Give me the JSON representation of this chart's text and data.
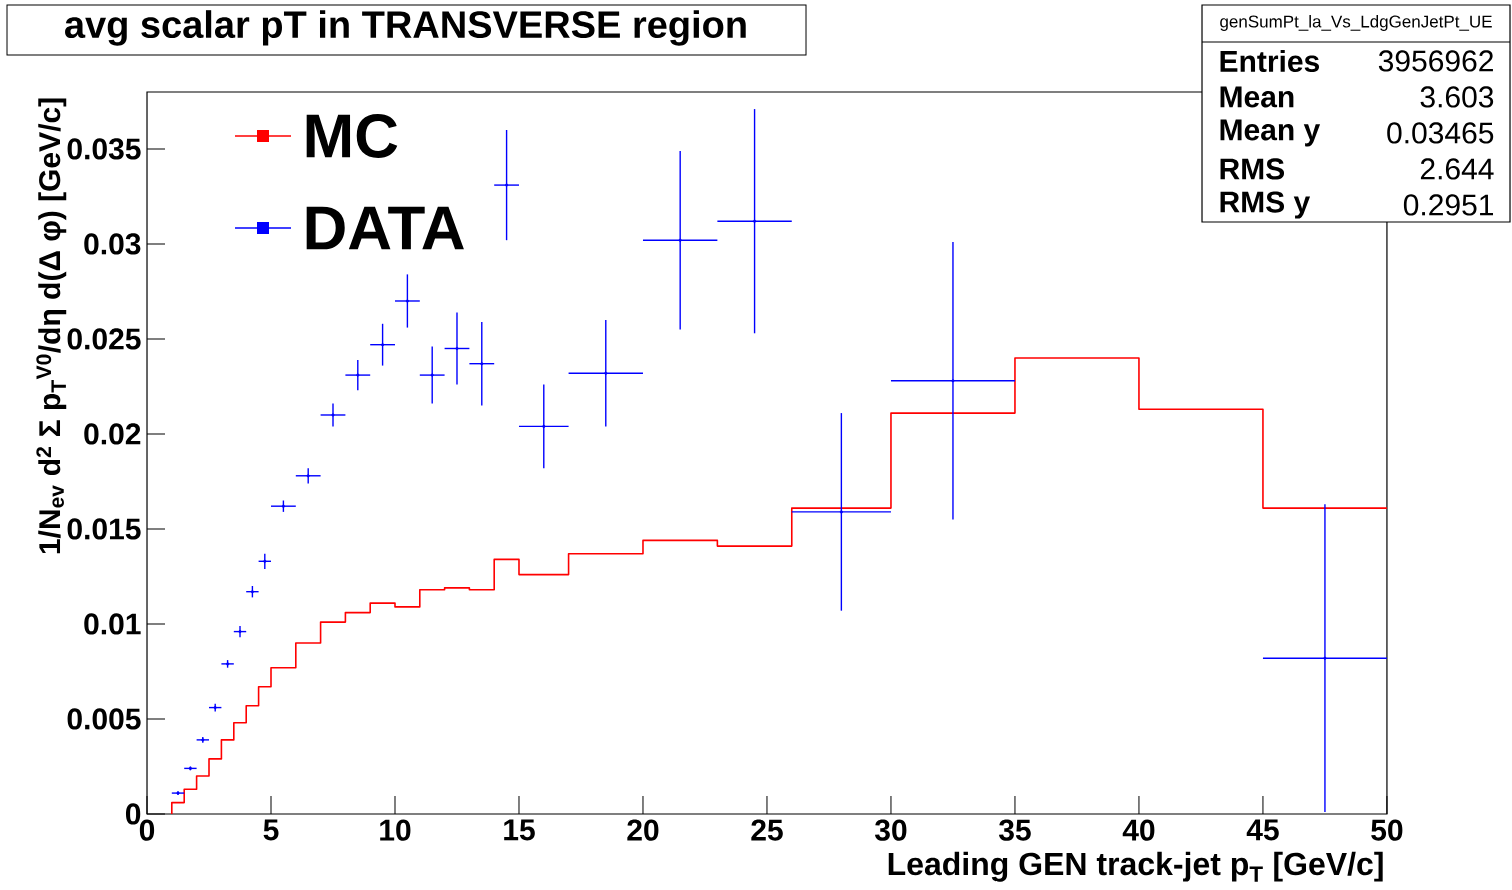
{
  "chart_data": {
    "type": "histogram",
    "title": "avg scalar pT in TRANSVERSE region",
    "xlabel": "Leading GEN track-jet p$_{T}$ [GeV/c]",
    "ylabel": "1/N$_{ev}$ d$^{2}$ Σ p$_{T}$$^{V0}$/dη d(Δ φ) [GeV/c]",
    "xlim": [
      0,
      50
    ],
    "ylim": [
      0,
      0.038
    ],
    "xticks": [
      0,
      5,
      10,
      15,
      20,
      25,
      30,
      35,
      40,
      45,
      50
    ],
    "yticks": [
      0,
      0.005,
      0.01,
      0.015,
      0.02,
      0.025,
      0.03,
      0.035
    ],
    "legend": "top left",
    "annotations": [
      "genSumPt_la_Vs_LdgGenJetPt_UE",
      "Entries",
      "3956962",
      "Mean",
      "3.603",
      "Mean y",
      "0.03465",
      "RMS",
      "2.644",
      "RMS y",
      "0.2951"
    ],
    "series": [
      {
        "name": "MC",
        "color": "#ff0000",
        "bins": [
          1,
          1.5,
          2,
          2.5,
          3,
          3.5,
          4,
          4.5,
          5,
          6,
          7,
          8,
          9,
          10,
          11,
          12,
          13,
          14,
          15,
          17,
          20,
          23,
          26,
          30,
          35,
          40,
          45,
          50
        ],
        "values": [
          0.0006,
          0.0013,
          0.002,
          0.0029,
          0.0039,
          0.0048,
          0.0057,
          0.0067,
          0.0077,
          0.009,
          0.0101,
          0.0106,
          0.0111,
          0.0109,
          0.0118,
          0.0119,
          0.0118,
          0.0134,
          0.0126,
          0.0137,
          0.0144,
          0.0141,
          0.0161,
          0.0211,
          0.024,
          0.0213,
          0.0161
        ]
      },
      {
        "name": "DATA",
        "type": "scatter",
        "color": "#0000ff",
        "x": [
          1.25,
          1.75,
          2.25,
          2.75,
          3.25,
          3.75,
          4.25,
          4.75,
          5.5,
          6.5,
          7.5,
          8.5,
          9.5,
          10.5,
          11.5,
          12.5,
          13.5,
          14.5,
          16,
          18.5,
          21.5,
          24.5,
          28,
          32.5,
          47.5
        ],
        "values": [
          0.0011,
          0.0024,
          0.0039,
          0.0056,
          0.0079,
          0.0096,
          0.0117,
          0.0133,
          0.0162,
          0.0178,
          0.021,
          0.0231,
          0.0247,
          0.027,
          0.0231,
          0.0245,
          0.0237,
          0.0331,
          0.0204,
          0.0232,
          0.0302,
          0.0312,
          0.0159,
          0.0228,
          0.0082
        ],
        "errors": [
          0.0001,
          0.0001,
          0.00015,
          0.0002,
          0.0002,
          0.0003,
          0.0003,
          0.0004,
          0.0003,
          0.0004,
          0.0006,
          0.0008,
          0.0011,
          0.0014,
          0.0015,
          0.0019,
          0.0022,
          0.0029,
          0.0022,
          0.0028,
          0.0047,
          0.0059,
          0.0052,
          0.0073,
          0.0081
        ],
        "xerrors": [
          0.25,
          0.25,
          0.25,
          0.25,
          0.25,
          0.25,
          0.25,
          0.25,
          0.5,
          0.5,
          0.5,
          0.5,
          0.5,
          0.5,
          0.5,
          0.5,
          0.5,
          0.5,
          1,
          1.5,
          1.5,
          1.5,
          2,
          2.5,
          2.5
        ]
      }
    ]
  }
}
